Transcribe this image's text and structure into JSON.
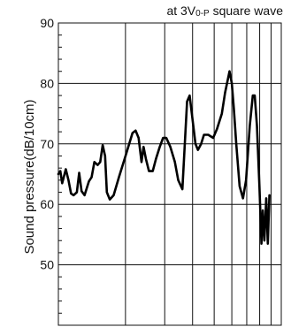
{
  "chart_data": {
    "type": "line",
    "title": "at 3V0-P square wave",
    "title_parts": {
      "pre": "at 3V",
      "sub": "0-P",
      "post": " square wave"
    },
    "xlabel": "",
    "ylabel": "Sound pressure(dB/10cm)",
    "ylim": [
      40,
      90
    ],
    "yticks": [
      "90",
      "80",
      "70",
      "60",
      "50"
    ],
    "xscale": "log",
    "xlim": [
      100,
      1000
    ],
    "grid": true,
    "series": [
      {
        "values": [
          [
            100,
            65
          ],
          [
            102,
            65.5
          ],
          [
            104,
            63.5
          ],
          [
            108,
            65.8
          ],
          [
            111,
            64
          ],
          [
            114,
            61.8
          ],
          [
            117,
            61.5
          ],
          [
            121,
            62
          ],
          [
            124,
            65.2
          ],
          [
            127,
            62.2
          ],
          [
            131,
            61.5
          ],
          [
            137,
            63.8
          ],
          [
            141,
            64.5
          ],
          [
            145,
            67
          ],
          [
            150,
            66.5
          ],
          [
            154,
            67
          ],
          [
            158,
            69.8
          ],
          [
            162,
            68
          ],
          [
            165,
            62
          ],
          [
            170,
            60.8
          ],
          [
            177,
            61.5
          ],
          [
            187,
            64.5
          ],
          [
            200,
            68
          ],
          [
            215,
            71.8
          ],
          [
            222,
            72.2
          ],
          [
            229,
            71
          ],
          [
            236,
            67
          ],
          [
            241,
            69.5
          ],
          [
            247,
            67.5
          ],
          [
            255,
            65.5
          ],
          [
            265,
            65.5
          ],
          [
            274,
            67.5
          ],
          [
            285,
            69.5
          ],
          [
            295,
            71
          ],
          [
            305,
            71
          ],
          [
            318,
            69.5
          ],
          [
            333,
            67
          ],
          [
            345,
            64
          ],
          [
            360,
            62.5
          ],
          [
            378,
            77
          ],
          [
            388,
            78
          ],
          [
            400,
            74
          ],
          [
            412,
            70
          ],
          [
            423,
            69
          ],
          [
            437,
            70
          ],
          [
            450,
            71.5
          ],
          [
            470,
            71.5
          ],
          [
            495,
            71
          ],
          [
            515,
            72.5
          ],
          [
            541,
            75
          ],
          [
            560,
            78.5
          ],
          [
            586,
            82
          ],
          [
            600,
            80
          ],
          [
            612,
            76
          ],
          [
            628,
            70
          ],
          [
            650,
            63
          ],
          [
            673,
            61
          ],
          [
            695,
            64
          ],
          [
            722,
            73
          ],
          [
            745,
            78
          ],
          [
            760,
            78
          ],
          [
            778,
            73
          ],
          [
            798,
            63
          ],
          [
            815,
            53.5
          ],
          [
            826,
            59
          ],
          [
            840,
            54
          ],
          [
            856,
            61
          ],
          [
            870,
            53.5
          ],
          [
            885,
            61.5
          ]
        ]
      }
    ]
  }
}
